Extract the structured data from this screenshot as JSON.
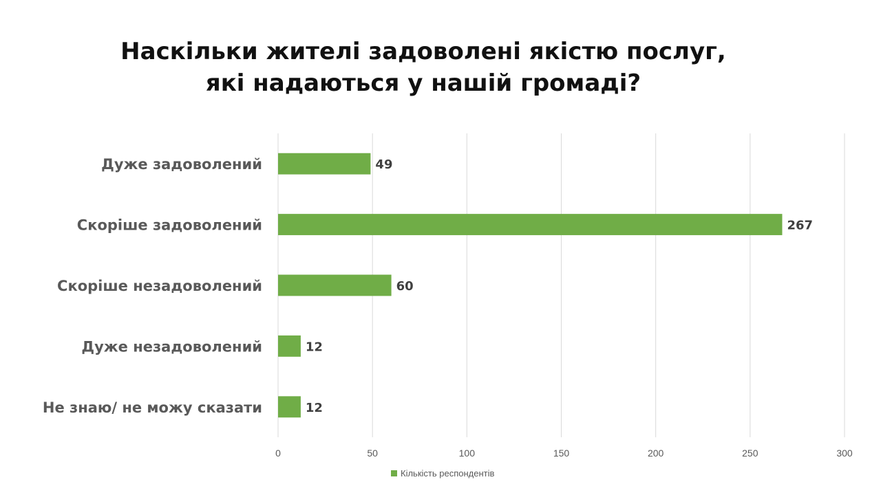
{
  "title": {
    "line1": "Наскільки жителі задоволені якістю послуг,",
    "line2": "які надаються у нашій громаді?"
  },
  "colors": {
    "bar": "#70ad47",
    "grid": "#d9d9d9",
    "category_text": "#595959",
    "value_text": "#404040"
  },
  "legend": {
    "label": "Кількість респондентів",
    "position": "bottom"
  },
  "chart_data": {
    "type": "bar",
    "orientation": "horizontal",
    "title": "Наскільки жителі задоволені якістю послуг, які надаються у нашій громаді?",
    "categories": [
      "Дуже задоволений",
      "Скоріше задоволений",
      "Скоріше незадоволений",
      "Дуже незадоволений",
      "Не знаю/ не можу сказати"
    ],
    "series": [
      {
        "name": "Кількість респондентів",
        "values": [
          49,
          267,
          60,
          12,
          12
        ]
      }
    ],
    "xlim": [
      0,
      300
    ],
    "xticks": [
      0,
      50,
      100,
      150,
      200,
      250,
      300
    ],
    "grid": "vertical",
    "data_labels": true
  }
}
